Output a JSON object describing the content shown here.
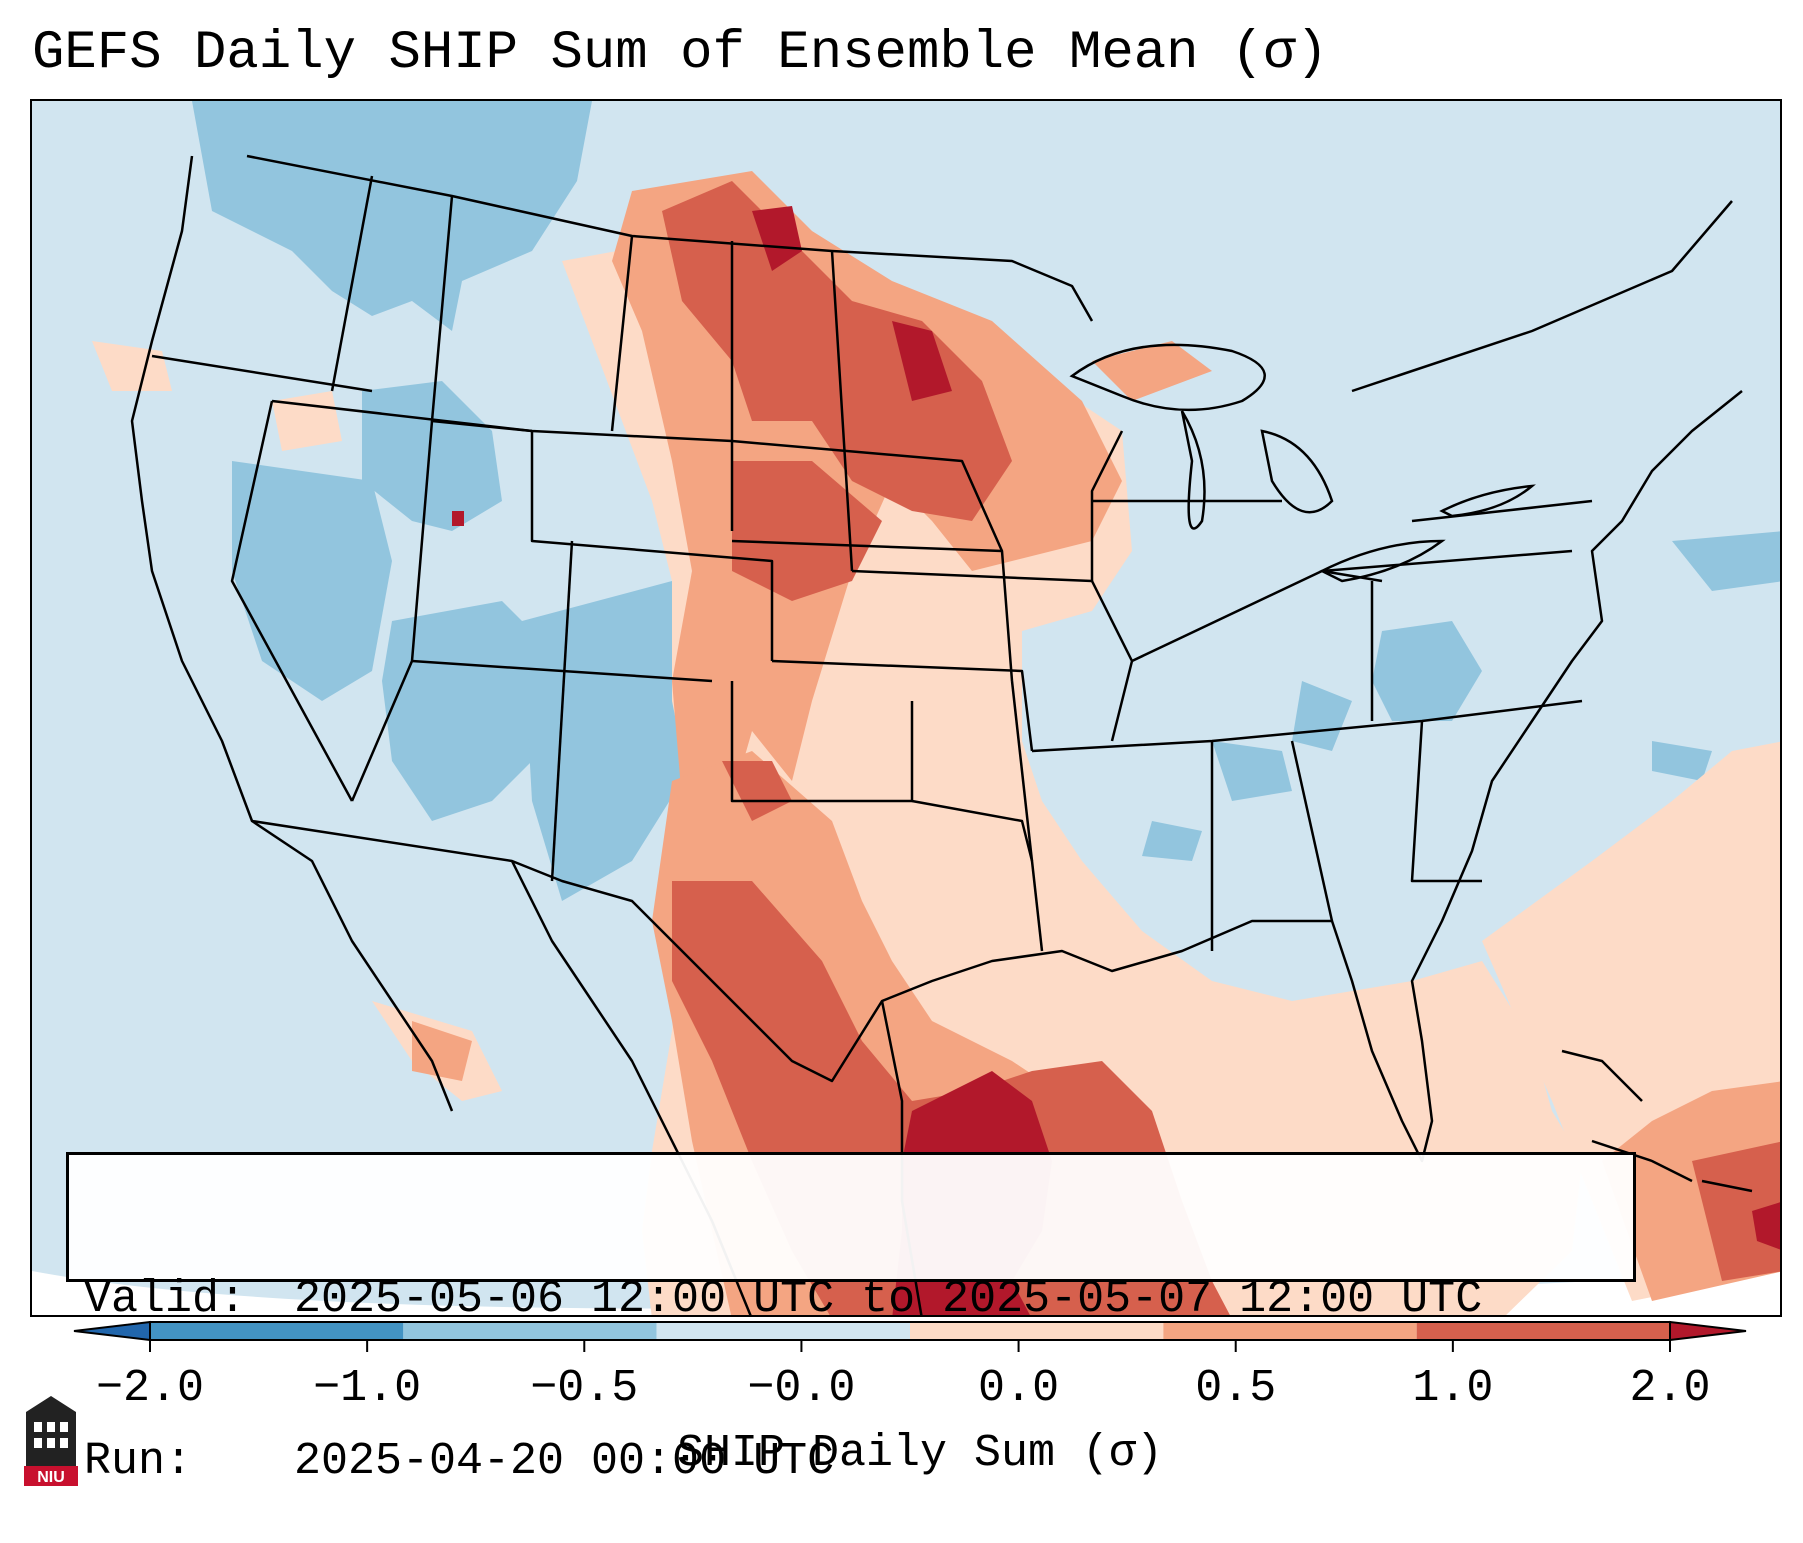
{
  "title": "GEFS Daily SHIP Sum of Ensemble Mean (σ)",
  "info": {
    "valid_label": "Valid:",
    "valid_value": "2025-05-06 12:00 UTC to 2025-05-07 12:00 UTC",
    "run_label": "Run:",
    "run_value": "2025-04-20 00:00 UTC"
  },
  "colorbar": {
    "label": "SHIP Daily Sum (σ)",
    "ticks": [
      "−2.0",
      "−1.0",
      "−0.5",
      "−0.0",
      "0.0",
      "0.5",
      "1.0",
      "2.0"
    ],
    "colors": [
      "#2166ac",
      "#4393c3",
      "#92c5de",
      "#d1e5f0",
      "#fddbc7",
      "#f4a582",
      "#d6604d",
      "#b2182b"
    ],
    "extend": "both"
  },
  "legend_colors": {
    "strong_negative": "#4393c3",
    "negative": "#92c5de",
    "slight_negative": "#d1e5f0",
    "slight_positive": "#fddbc7",
    "positive": "#f4a582",
    "strong_positive": "#d6604d",
    "extreme_positive": "#b2182b"
  },
  "logo": {
    "text": "NIU",
    "icon": "niu-castle-logo-icon"
  }
}
